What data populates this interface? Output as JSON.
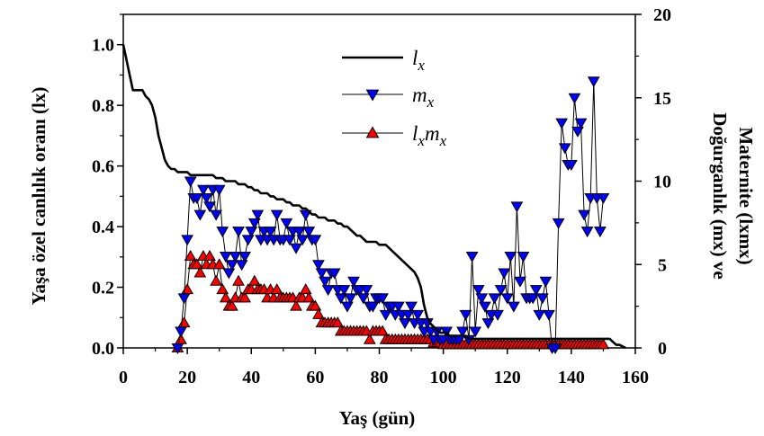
{
  "chart_data": {
    "type": "line",
    "xlabel": "Yaş (gün)",
    "ylabel": "Yaşa özel canlılık oranı (lx)",
    "y2label_line1": "Doğurganlık (mx) ve",
    "y2label_line2": "Maternite (lxmx)",
    "xlim": [
      0,
      160
    ],
    "ylim": [
      0,
      1.1
    ],
    "y2lim": [
      0,
      20
    ],
    "xticks": [
      "0",
      "20",
      "40",
      "60",
      "80",
      "100",
      "120",
      "140",
      "160"
    ],
    "yticks": [
      "0.0",
      "0.2",
      "0.4",
      "0.6",
      "0.8",
      "1.0"
    ],
    "y2ticks": [
      "0",
      "5",
      "10",
      "15",
      "20"
    ],
    "legend": {
      "placement": "top-center",
      "entries": [
        {
          "key": "lx",
          "label": "lx",
          "base": "l",
          "sub": "x",
          "base2": "",
          "sub2": ""
        },
        {
          "key": "mx",
          "label": "mx",
          "base": "m",
          "sub": "x",
          "base2": "",
          "sub2": ""
        },
        {
          "key": "lxmx",
          "label": "lxmx",
          "base": "l",
          "sub": "x",
          "base2": "m",
          "sub2": "x"
        }
      ]
    },
    "series": [
      {
        "name": "lx",
        "axis": "left",
        "color": "#000000",
        "marker": "none",
        "x": [
          0,
          1,
          2,
          3,
          4,
          5,
          6,
          7,
          8,
          9,
          10,
          11,
          12,
          13,
          14,
          15,
          16,
          17,
          18,
          19,
          20,
          21,
          22,
          23,
          24,
          25,
          26,
          27,
          28,
          29,
          30,
          31,
          32,
          33,
          34,
          35,
          36,
          37,
          38,
          39,
          40,
          41,
          42,
          43,
          44,
          45,
          46,
          47,
          48,
          49,
          50,
          51,
          52,
          53,
          54,
          55,
          56,
          57,
          58,
          59,
          60,
          61,
          62,
          63,
          64,
          65,
          66,
          67,
          68,
          69,
          70,
          71,
          72,
          73,
          74,
          75,
          76,
          77,
          78,
          79,
          80,
          81,
          82,
          83,
          84,
          85,
          86,
          87,
          88,
          89,
          90,
          91,
          92,
          93,
          94,
          95,
          96,
          97,
          98,
          99,
          100,
          101,
          102,
          103,
          104,
          105,
          106,
          107,
          108,
          109,
          110,
          112,
          115,
          120,
          125,
          130,
          135,
          140,
          145,
          150,
          152,
          154,
          155,
          157
        ],
        "y": [
          1.0,
          0.95,
          0.9,
          0.85,
          0.85,
          0.85,
          0.85,
          0.83,
          0.82,
          0.8,
          0.76,
          0.7,
          0.66,
          0.62,
          0.6,
          0.59,
          0.59,
          0.58,
          0.58,
          0.58,
          0.58,
          0.57,
          0.57,
          0.57,
          0.57,
          0.57,
          0.57,
          0.57,
          0.57,
          0.56,
          0.56,
          0.56,
          0.55,
          0.55,
          0.55,
          0.55,
          0.54,
          0.54,
          0.54,
          0.53,
          0.53,
          0.52,
          0.52,
          0.51,
          0.51,
          0.51,
          0.5,
          0.5,
          0.49,
          0.49,
          0.49,
          0.48,
          0.48,
          0.47,
          0.47,
          0.47,
          0.46,
          0.46,
          0.45,
          0.44,
          0.44,
          0.43,
          0.43,
          0.43,
          0.42,
          0.42,
          0.42,
          0.41,
          0.41,
          0.4,
          0.4,
          0.39,
          0.38,
          0.37,
          0.37,
          0.36,
          0.35,
          0.35,
          0.35,
          0.35,
          0.34,
          0.34,
          0.34,
          0.33,
          0.32,
          0.31,
          0.3,
          0.29,
          0.28,
          0.27,
          0.26,
          0.25,
          0.23,
          0.2,
          0.14,
          0.1,
          0.08,
          0.07,
          0.06,
          0.05,
          0.05,
          0.05,
          0.04,
          0.04,
          0.04,
          0.04,
          0.04,
          0.04,
          0.03,
          0.03,
          0.03,
          0.03,
          0.03,
          0.03,
          0.03,
          0.03,
          0.03,
          0.03,
          0.03,
          0.03,
          0.03,
          0.01,
          0.01,
          0.0
        ]
      },
      {
        "name": "mx",
        "axis": "right",
        "color": "#0000ff",
        "marker": "triangle-down",
        "x": [
          17,
          18,
          19,
          20,
          21,
          22,
          23,
          24,
          25,
          26,
          27,
          28,
          29,
          30,
          31,
          32,
          33,
          34,
          35,
          36,
          37,
          38,
          39,
          40,
          41,
          42,
          43,
          44,
          45,
          46,
          47,
          48,
          49,
          50,
          51,
          52,
          53,
          54,
          55,
          56,
          57,
          58,
          59,
          60,
          61,
          62,
          63,
          64,
          65,
          66,
          67,
          68,
          69,
          70,
          71,
          72,
          73,
          74,
          75,
          76,
          77,
          78,
          79,
          80,
          81,
          82,
          83,
          84,
          85,
          86,
          87,
          88,
          89,
          90,
          91,
          92,
          93,
          94,
          95,
          96,
          97,
          98,
          99,
          100,
          101,
          102,
          103,
          104,
          105,
          106,
          107,
          108,
          109,
          110,
          111,
          112,
          113,
          114,
          115,
          116,
          117,
          118,
          119,
          120,
          121,
          122,
          123,
          124,
          125,
          126,
          127,
          128,
          129,
          130,
          131,
          132,
          133,
          134,
          135,
          136,
          137,
          138,
          139,
          140,
          141,
          142,
          143,
          144,
          145,
          146,
          147,
          148,
          149,
          150
        ],
        "y": [
          0.0,
          1.0,
          3.0,
          6.5,
          10.0,
          9.0,
          9.0,
          8.0,
          9.5,
          9.0,
          8.5,
          9.5,
          8.0,
          9.5,
          7.0,
          5.5,
          4.5,
          5.0,
          5.5,
          7.0,
          5.0,
          5.5,
          6.5,
          7.0,
          7.5,
          8.0,
          6.5,
          7.0,
          6.5,
          7.0,
          6.5,
          8.0,
          6.5,
          6.5,
          7.5,
          6.5,
          7.0,
          6.0,
          7.0,
          6.5,
          8.0,
          7.0,
          6.5,
          6.5,
          5.0,
          4.5,
          4.0,
          3.5,
          4.5,
          4.5,
          3.5,
          3.0,
          3.5,
          2.5,
          3.0,
          4.0,
          3.5,
          3.5,
          3.0,
          3.5,
          2.5,
          2.5,
          3.0,
          3.0,
          3.0,
          2.0,
          2.5,
          2.5,
          2.0,
          2.5,
          2.0,
          1.5,
          2.0,
          2.5,
          1.5,
          2.0,
          1.5,
          1.0,
          1.5,
          1.0,
          0.5,
          1.0,
          0.5,
          0.5,
          1.0,
          0.5,
          0.5,
          0.5,
          0.5,
          1.0,
          2.0,
          0.5,
          5.5,
          1.0,
          3.5,
          3.0,
          2.5,
          1.5,
          2.0,
          3.0,
          2.0,
          3.5,
          4.5,
          3.0,
          5.5,
          2.5,
          8.5,
          4.0,
          5.5,
          3.0,
          3.0,
          3.0,
          3.5,
          2.0,
          3.0,
          4.0,
          2.0,
          0.0,
          0.0,
          7.5,
          13.5,
          12.0,
          11.0,
          11.0,
          15.0,
          13.0,
          13.5,
          8.0,
          7.0,
          9.0,
          16.0,
          9.0,
          7.0,
          9.0
        ]
      },
      {
        "name": "lxmx",
        "axis": "right",
        "color": "#ff0000",
        "marker": "triangle-up",
        "x": [
          17,
          18,
          19,
          20,
          21,
          22,
          23,
          24,
          25,
          26,
          27,
          28,
          29,
          30,
          31,
          32,
          33,
          34,
          35,
          36,
          37,
          38,
          39,
          40,
          41,
          42,
          43,
          44,
          45,
          46,
          47,
          48,
          49,
          50,
          51,
          52,
          53,
          54,
          55,
          56,
          57,
          58,
          59,
          60,
          61,
          62,
          63,
          64,
          65,
          66,
          67,
          68,
          69,
          70,
          71,
          72,
          73,
          74,
          75,
          76,
          77,
          78,
          79,
          80,
          81,
          82,
          83,
          84,
          85,
          86,
          87,
          88,
          89,
          90,
          91,
          92,
          93,
          94,
          95,
          96,
          97,
          98,
          99,
          100,
          101,
          102,
          103,
          104,
          105,
          106,
          107,
          108,
          109,
          110,
          111,
          112,
          113,
          114,
          115,
          116,
          117,
          118,
          119,
          120,
          121,
          122,
          123,
          124,
          125,
          126,
          127,
          128,
          129,
          130,
          131,
          132,
          133,
          134,
          135,
          136,
          137,
          138,
          139,
          140,
          141,
          142,
          143,
          144,
          145,
          146,
          147,
          148,
          149,
          150
        ],
        "y": [
          0.0,
          0.5,
          1.5,
          3.5,
          5.5,
          5.0,
          5.0,
          4.5,
          5.5,
          5.0,
          5.5,
          5.0,
          4.0,
          5.0,
          3.5,
          3.0,
          2.5,
          2.5,
          3.0,
          4.0,
          3.0,
          3.0,
          3.5,
          3.5,
          4.0,
          3.5,
          3.5,
          3.5,
          3.0,
          3.5,
          3.0,
          3.5,
          3.0,
          3.0,
          3.0,
          3.0,
          3.0,
          2.5,
          3.0,
          3.0,
          3.5,
          3.0,
          2.5,
          2.5,
          2.0,
          1.5,
          1.5,
          1.5,
          1.5,
          1.5,
          1.5,
          1.0,
          1.0,
          1.0,
          1.0,
          1.0,
          1.0,
          1.0,
          1.0,
          1.0,
          0.5,
          1.0,
          1.0,
          1.0,
          1.0,
          0.5,
          0.5,
          0.5,
          0.5,
          0.5,
          0.5,
          0.5,
          0.5,
          0.5,
          0.5,
          0.5,
          0.5,
          0.5,
          0.5,
          0.5,
          0.3,
          0.3,
          0.3,
          0.2,
          0.2,
          0.2,
          0.2,
          0.2,
          0.2,
          0.2,
          0.2,
          0.2,
          0.2,
          0.2,
          0.2,
          0.2,
          0.2,
          0.2,
          0.2,
          0.2,
          0.2,
          0.2,
          0.2,
          0.2,
          0.2,
          0.2,
          0.2,
          0.2,
          0.2,
          0.2,
          0.2,
          0.2,
          0.2,
          0.2,
          0.2,
          0.2,
          0.2,
          0.2,
          0.2,
          0.2,
          0.2,
          0.2,
          0.2,
          0.2,
          0.2,
          0.2,
          0.2,
          0.2,
          0.2,
          0.2,
          0.2,
          0.2,
          0.2,
          0.2
        ]
      }
    ]
  }
}
